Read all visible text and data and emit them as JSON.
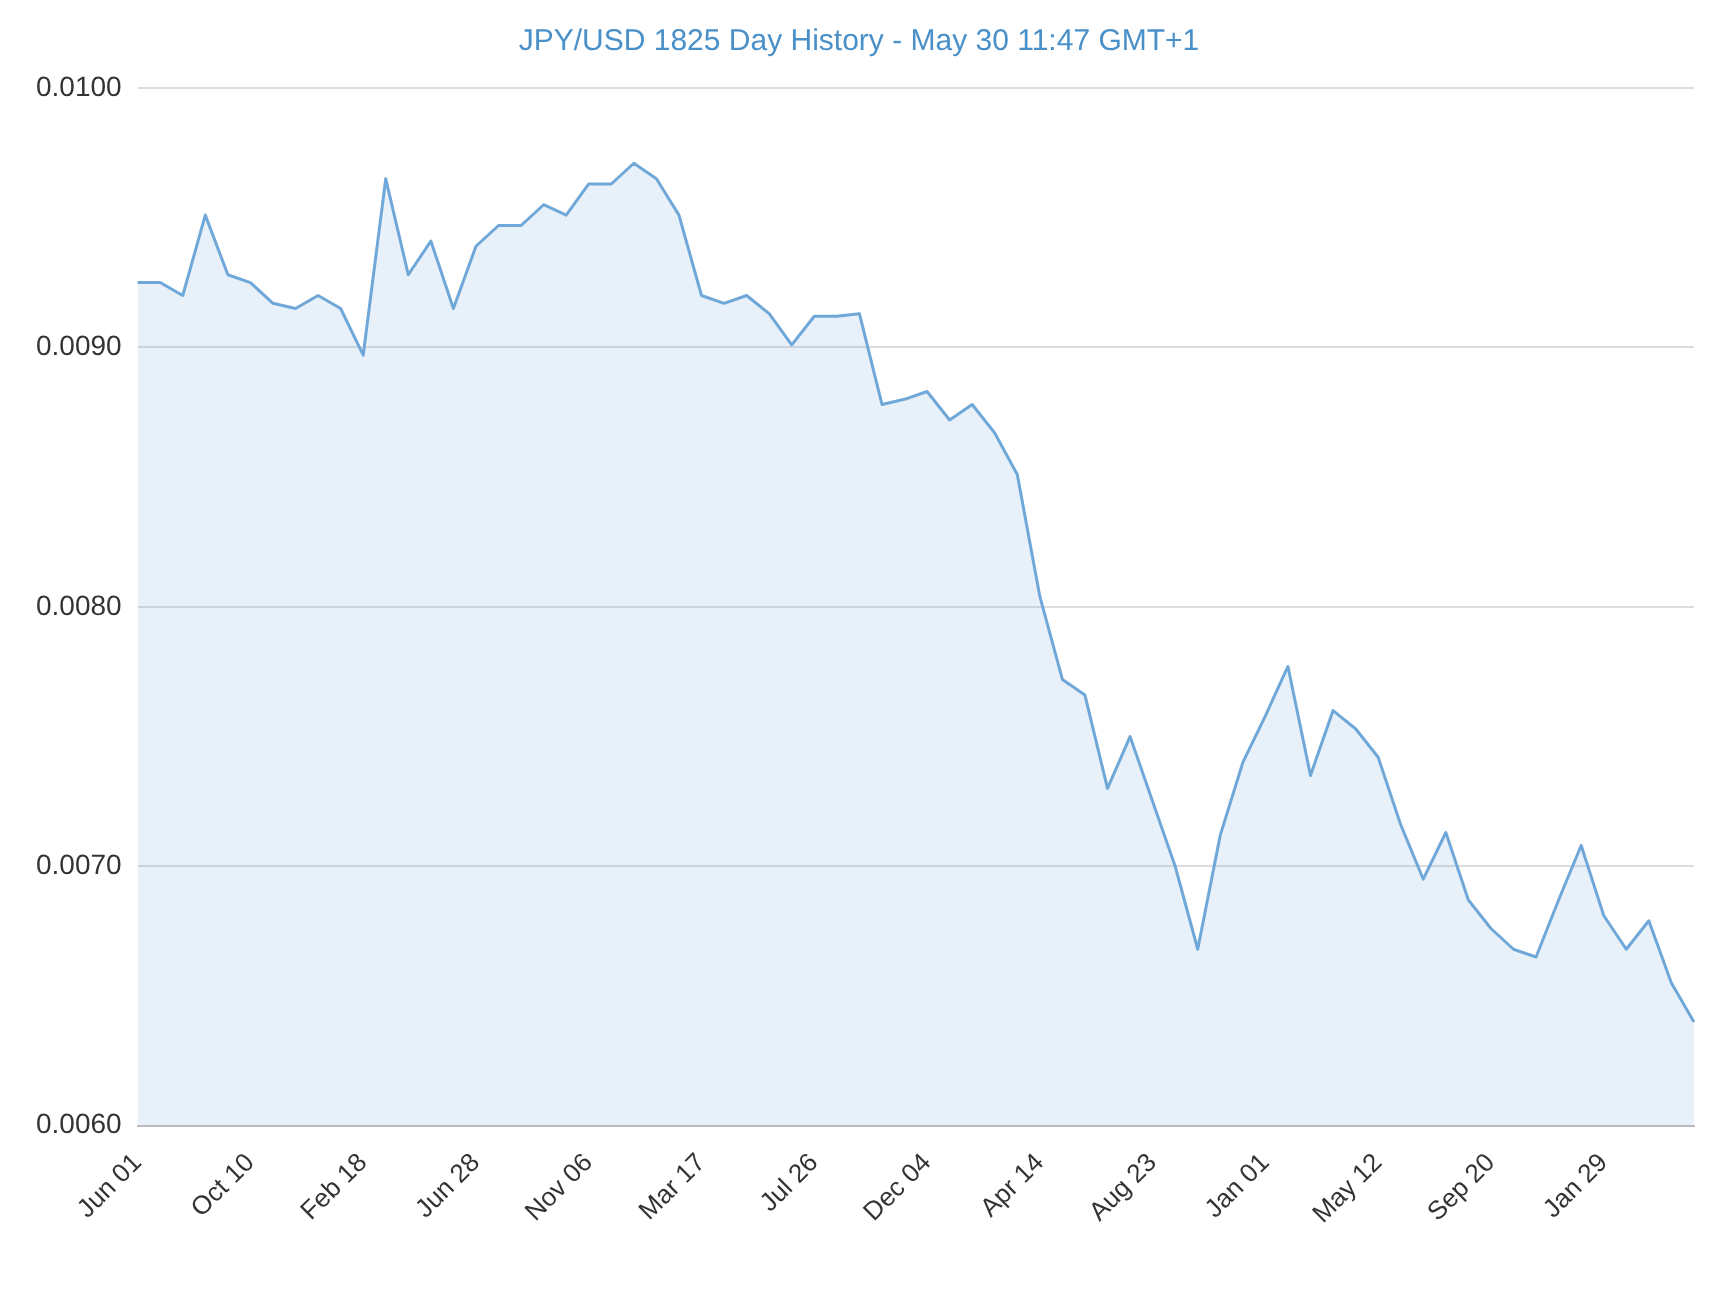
{
  "chart_data": {
    "type": "area",
    "title": "JPY/USD 1825 Day History - May 30 11:47 GMT+1",
    "categories": [
      "Jun 01",
      null,
      null,
      null,
      null,
      "Oct 10",
      null,
      null,
      null,
      null,
      "Feb 18",
      null,
      null,
      null,
      null,
      "Jun 28",
      null,
      null,
      null,
      null,
      "Nov 06",
      null,
      null,
      null,
      null,
      "Mar 17",
      null,
      null,
      null,
      null,
      "Jul 26",
      null,
      null,
      null,
      null,
      "Dec 04",
      null,
      null,
      null,
      null,
      "Apr 14",
      null,
      null,
      null,
      null,
      "Aug 23",
      null,
      null,
      null,
      null,
      "Jan 01",
      null,
      null,
      null,
      null,
      "May 12",
      null,
      null,
      null,
      null,
      "Sep 20",
      null,
      null,
      null,
      null,
      "Jan 29",
      null,
      null,
      null,
      null
    ],
    "series": [
      {
        "color": "#6fa8d8",
        "values": [
          0.00925,
          0.00925,
          0.0092,
          0.00951,
          0.00928,
          0.00925,
          0.00917,
          0.00915,
          0.0092,
          0.00915,
          0.00897,
          0.00965,
          0.00928,
          0.00941,
          0.00915,
          0.00939,
          0.00947,
          0.00947,
          0.00955,
          0.00951,
          0.00963,
          0.00963,
          0.00971,
          0.00965,
          0.00951,
          0.0092,
          0.00917,
          0.0092,
          0.00913,
          0.00901,
          0.00912,
          0.00912,
          0.00913,
          0.00878,
          0.0088,
          0.00883,
          0.00872,
          0.00878,
          0.00867,
          0.00851,
          0.00804,
          0.00772,
          0.00766,
          0.0073,
          0.0075,
          0.00725,
          0.007,
          0.00668,
          0.00712,
          0.0074,
          0.00758,
          0.00777,
          0.00735,
          0.0076,
          0.00753,
          0.00742,
          0.00716,
          0.00695,
          0.00713,
          0.00687,
          0.00676,
          0.00668,
          0.00665,
          0.00687,
          0.00708,
          0.00681,
          0.00668,
          0.00679,
          0.00655,
          0.0064
        ]
      }
    ],
    "ylim": [
      0.006,
      0.01
    ],
    "yticks": [
      {
        "value": 0.006,
        "label": "0.0060"
      },
      {
        "value": 0.007,
        "label": "0.0070"
      },
      {
        "value": 0.008,
        "label": "0.0080"
      },
      {
        "value": 0.009,
        "label": "0.0090"
      },
      {
        "value": 0.01,
        "label": "0.0100"
      }
    ],
    "grid": "y",
    "legend": false
  }
}
